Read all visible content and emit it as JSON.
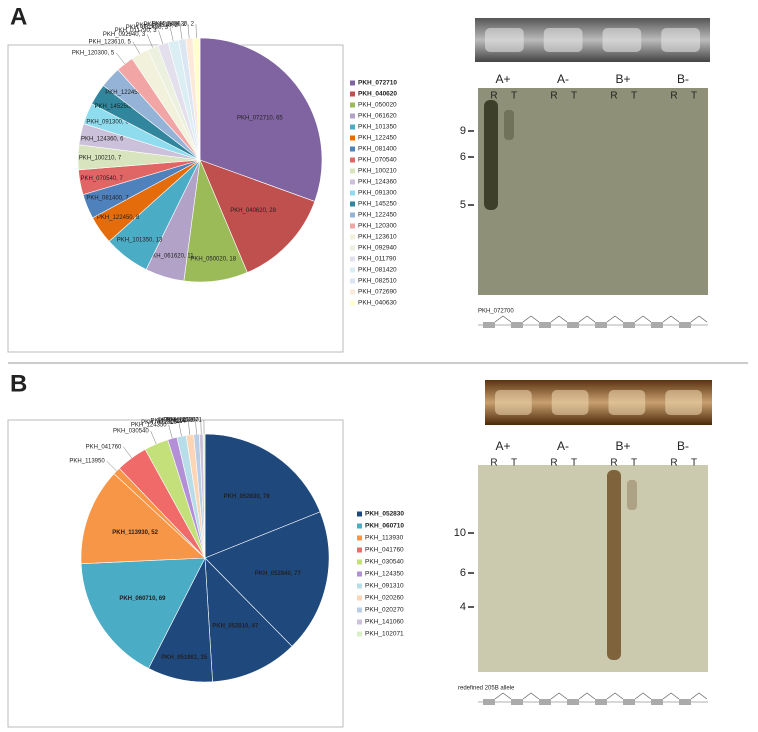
{
  "figure": {
    "panels": [
      {
        "label": "A",
        "blot": {
          "lanes": [
            "A+",
            "A-",
            "B+",
            "B-"
          ],
          "sublanes": [
            "R",
            "T"
          ],
          "markers": [
            "9",
            "6",
            "5"
          ],
          "gene": "PKH_072700"
        }
      },
      {
        "label": "B",
        "blot": {
          "lanes": [
            "A+",
            "A-",
            "B+",
            "B-"
          ],
          "sublanes": [
            "R",
            "T"
          ],
          "markers": [
            "10",
            "6",
            "4"
          ],
          "gene": "redefined 205B allele"
        }
      }
    ]
  },
  "chart_data": [
    {
      "type": "pie",
      "categories": [
        "PKH_072710",
        "PKH_040620",
        "PKH_050020",
        "PKH_061620",
        "PKH_101350",
        "PKH_122450",
        "PKH_081400",
        "PKH_070540",
        "PKH_100210",
        "PKH_124360",
        "PKH_091300",
        "PKH_145250",
        "PKH_122450",
        "PKH_120300",
        "PKH_123610",
        "PKH_092940",
        "PKH_011790",
        "PKH_081420",
        "PKH_082510",
        "PKH_072690",
        "PKH_040630"
      ],
      "values": [
        65,
        28,
        18,
        11,
        13,
        8,
        7,
        7,
        7,
        6,
        6,
        6,
        6,
        5,
        5,
        3,
        3,
        3,
        2,
        2,
        2
      ],
      "value_labels": [
        "PKH_072710, 65",
        "PKH_040620, 28",
        "PKH_050020, 18",
        "PKH_061620, 11",
        "PKH_101350, 13",
        "PKH_122450, 8",
        "PKH_081400, 7",
        "PKH_070540, 7",
        "PKH_100210, 7",
        "PKH_124360, 6",
        "PKH_091300, 6",
        "PKH_145250, 6",
        "PKH_122450, 6",
        "PKH_120300, 5",
        "PKH_123610, 5",
        "PKH_092940, 3",
        "PKH_011790, 3",
        "PKH_081420, 3",
        "PKH_082510, 2",
        "PKH_072690, 2",
        "PKH_040630, 2"
      ],
      "colors": [
        "#8064a2",
        "#c0504d",
        "#9bbb59",
        "#b3a2c7",
        "#4bacc6",
        "#e46c0a",
        "#4f81bd",
        "#e06666",
        "#d7e4bd",
        "#ccc1da",
        "#8fdcef",
        "#31859c",
        "#95b3d7",
        "#f2a5a5",
        "#f2f2dc",
        "#ebf1de",
        "#e4dfec",
        "#dbeef4",
        "#dce6f2",
        "#fde9d9",
        "#ffffcc"
      ],
      "legend": [
        {
          "name": "PKH_072710",
          "color": "#8064a2"
        },
        {
          "name": "PKH_040620",
          "color": "#c0504d"
        },
        {
          "name": "PKH_050020",
          "color": "#9bbb59"
        },
        {
          "name": "PKH_061620",
          "color": "#b3a2c7"
        },
        {
          "name": "PKH_101350",
          "color": "#4bacc6"
        },
        {
          "name": "PKH_122450",
          "color": "#e46c0a"
        },
        {
          "name": "PKH_081400",
          "color": "#4f81bd"
        },
        {
          "name": "PKH_070540",
          "color": "#e06666"
        },
        {
          "name": "PKH_100210",
          "color": "#d7e4bd"
        },
        {
          "name": "PKH_124360",
          "color": "#ccc1da"
        },
        {
          "name": "PKH_091300",
          "color": "#8fdcef"
        },
        {
          "name": "PKH_145250",
          "color": "#31859c"
        },
        {
          "name": "PKH_122450",
          "color": "#95b3d7"
        },
        {
          "name": "PKH_120300",
          "color": "#f2a5a5"
        },
        {
          "name": "PKH_123610",
          "color": "#f2f2dc"
        },
        {
          "name": "PKH_092940",
          "color": "#ebf1de"
        },
        {
          "name": "PKH_011790",
          "color": "#e4dfec"
        },
        {
          "name": "PKH_081420",
          "color": "#dbeef4"
        },
        {
          "name": "PKH_082510",
          "color": "#dce6f2"
        },
        {
          "name": "PKH_072690",
          "color": "#fde9d9"
        },
        {
          "name": "PKH_040630",
          "color": "#ffffcc"
        }
      ]
    },
    {
      "type": "pie",
      "categories": [
        "PKH_052830",
        "PKH_052840",
        "PKH_052810",
        "PKH_051981",
        "PKH_060710",
        "PKH_113930",
        "PKH_113950",
        "PKH_041760",
        "PKH_030540",
        "PKH_124350",
        "PKH_091310",
        "PKH_020260",
        "PKH_020270",
        "PKH_141060",
        "PKH_102071"
      ],
      "values": [
        78,
        77,
        47,
        35,
        69,
        52,
        4,
        17,
        13,
        5,
        5,
        4,
        3,
        2,
        1
      ],
      "value_labels": [
        "PKH_052830, 78",
        "PKH_052840, 77",
        "PKH_052810, 47",
        "PKH_051981, 35",
        "PKH_060710, 69",
        "PKH_113930, 52",
        null,
        null,
        null,
        null,
        null,
        null,
        null,
        null,
        null
      ],
      "colors": [
        "#1f497d",
        "#1f497d",
        "#1f497d",
        "#1f497d",
        "#4bacc6",
        "#f79646",
        "#f79646",
        "#f06a6a",
        "#c3e07a",
        "#b28fd6",
        "#b7dee8",
        "#fcd5b4",
        "#b9cde5",
        "#ccc0da",
        "#d8f0c4"
      ],
      "legend": [
        {
          "name": "PKH_052830",
          "color": "#1f497d"
        },
        {
          "name": "PKH_060710",
          "color": "#4bacc6"
        },
        {
          "name": "PKH_113930",
          "color": "#f79646"
        },
        {
          "name": "PKH_041760",
          "color": "#f06a6a"
        },
        {
          "name": "PKH_030540",
          "color": "#c3e07a"
        },
        {
          "name": "PKH_124350",
          "color": "#b28fd6"
        },
        {
          "name": "PKH_091310",
          "color": "#b7dee8"
        },
        {
          "name": "PKH_020260",
          "color": "#fcd5b4"
        },
        {
          "name": "PKH_020270",
          "color": "#b9cde5"
        },
        {
          "name": "PKH_141060",
          "color": "#ccc0da"
        },
        {
          "name": "PKH_102071",
          "color": "#d8f0c4"
        }
      ]
    }
  ]
}
